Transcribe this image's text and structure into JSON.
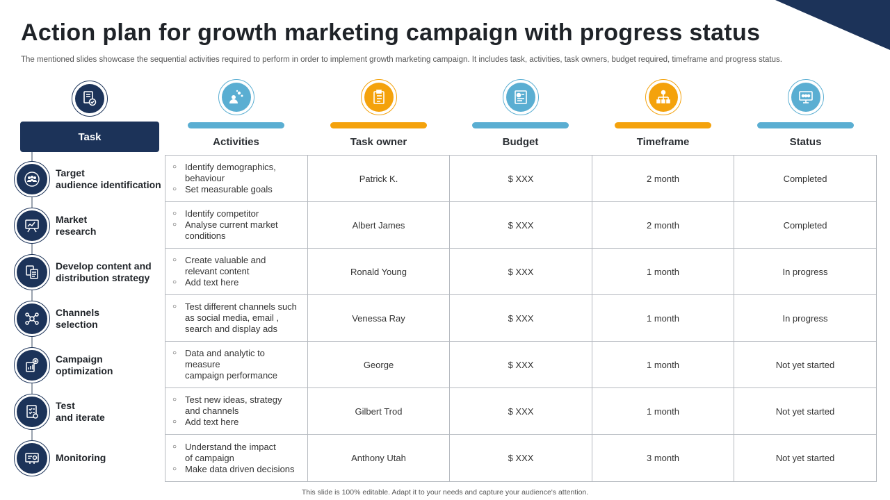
{
  "slide": {
    "title": "Action plan for growth marketing campaign with progress status",
    "subtitle": "The mentioned slides showcase the sequential activities required to perform in order to implement growth marketing campaign. It includes task, activities, task owners, budget required, timeframe and progress status.",
    "footer": "This slide is 100% editable. Adapt it to your needs and capture your audience's attention."
  },
  "colors": {
    "navy": "#1c3359",
    "blue": "#5aaed2",
    "orange": "#f4a20c",
    "grid": "#b5b9bf"
  },
  "task_header": {
    "label": "Task",
    "icon": "document-check-icon"
  },
  "columns": [
    {
      "label": "Activities",
      "icon": "team-idea-icon",
      "color": "#5aaed2"
    },
    {
      "label": "Task owner",
      "icon": "clipboard-icon",
      "color": "#f4a20c"
    },
    {
      "label": "Budget",
      "icon": "budget-report-icon",
      "color": "#5aaed2"
    },
    {
      "label": "Timeframe",
      "icon": "org-hierarchy-icon",
      "color": "#f4a20c"
    },
    {
      "label": "Status",
      "icon": "monitor-dashboard-icon",
      "color": "#5aaed2"
    }
  ],
  "rows": [
    {
      "task": "Target\naudience identification",
      "icon": "audience-group-icon",
      "activities": [
        "Identify demographics,\nbehaviour",
        "Set measurable goals"
      ],
      "owner": "Patrick K.",
      "budget": "$ XXX",
      "timeframe": "2 month",
      "status": "Completed"
    },
    {
      "task": "Market\nresearch",
      "icon": "presentation-board-icon",
      "activities": [
        "Identify competitor",
        "Analyse current market\nconditions"
      ],
      "owner": "Albert James",
      "budget": "$ XXX",
      "timeframe": "2 month",
      "status": "Completed"
    },
    {
      "task": "Develop content and\ndistribution strategy",
      "icon": "content-strategy-icon",
      "activities": [
        "Create valuable  and\nrelevant  content",
        "Add text here"
      ],
      "owner": "Ronald  Young",
      "budget": "$ XXX",
      "timeframe": "1 month",
      "status": "In progress"
    },
    {
      "task": "Channels\nselection",
      "icon": "channels-network-icon",
      "activities": [
        "Test different  channels such\nas social media,  email ,\nsearch and display ads"
      ],
      "owner": "Venessa Ray",
      "budget": "$ XXX",
      "timeframe": "1 month",
      "status": "In progress"
    },
    {
      "task": "Campaign\noptimization",
      "icon": "optimization-gear-icon",
      "activities": [
        "Data and analytic to\nmeasure\ncampaign  performance"
      ],
      "owner": "George",
      "budget": "$ XXX",
      "timeframe": "1 month",
      "status": "Not yet started"
    },
    {
      "task": "Test\nand iterate",
      "icon": "test-checklist-icon",
      "activities": [
        "Test new ideas, strategy\nand channels",
        "Add text here"
      ],
      "owner": "Gilbert Trod",
      "budget": "$ XXX",
      "timeframe": "1 month",
      "status": "Not yet started"
    },
    {
      "task": "Monitoring",
      "icon": "monitoring-screen-icon",
      "activities": [
        "Understand the impact\nof campaign",
        "Make data driven  decisions"
      ],
      "owner": "Anthony Utah",
      "budget": "$ XXX",
      "timeframe": "3 month",
      "status": "Not yet started"
    }
  ]
}
